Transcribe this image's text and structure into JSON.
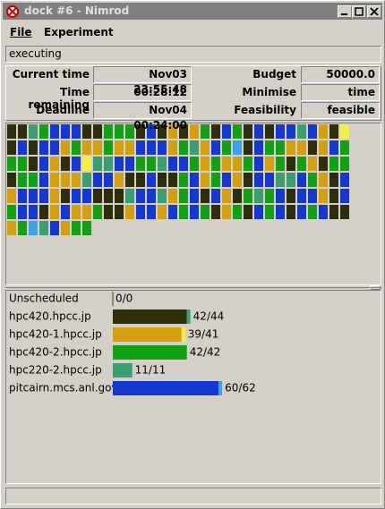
{
  "window": {
    "title": "dock #6 - Nimrod"
  },
  "menu": [
    "File",
    "Experiment"
  ],
  "status": "executing",
  "info": [
    {
      "label": "Current time",
      "value": "Nov03 23:55:48"
    },
    {
      "label": "Budget",
      "value": "50000.0"
    },
    {
      "label": "Time remaining",
      "value": "00:28:12"
    },
    {
      "label": "Minimise",
      "value": "time"
    },
    {
      "label": "Deadline",
      "value": "Nov04 00:24:00"
    },
    {
      "label": "Feasibility",
      "value": "feasible"
    }
  ],
  "machines": [
    {
      "name": "Unscheduled",
      "progress": "0/0",
      "done": 0,
      "total": 0,
      "color": "#2e2e0c",
      "running_color": "#3aa070"
    },
    {
      "name": "hpc420.hpcc.jp",
      "progress": "42/44",
      "done": 42,
      "total": 44,
      "color": "#2e2e0c",
      "running_color": "#3aa070"
    },
    {
      "name": "hpc420-1.hpcc.jp",
      "progress": "39/41",
      "done": 39,
      "total": 41,
      "color": "#d4a010",
      "running_color": "#f4f040"
    },
    {
      "name": "hpc420-2.hpcc.jp",
      "progress": "42/42",
      "done": 42,
      "total": 42,
      "color": "#14a014",
      "running_color": "#60d060"
    },
    {
      "name": "hpc220-2.hpcc.jp",
      "progress": "11/11",
      "done": 11,
      "total": 11,
      "color": "#3a9e70",
      "running_color": "#70c8a0"
    },
    {
      "name": "pitcairn.mcs.anl.gov",
      "progress": "60/62",
      "done": 60,
      "total": 62,
      "color": "#1438d0",
      "running_color": "#40a0f0"
    }
  ]
}
